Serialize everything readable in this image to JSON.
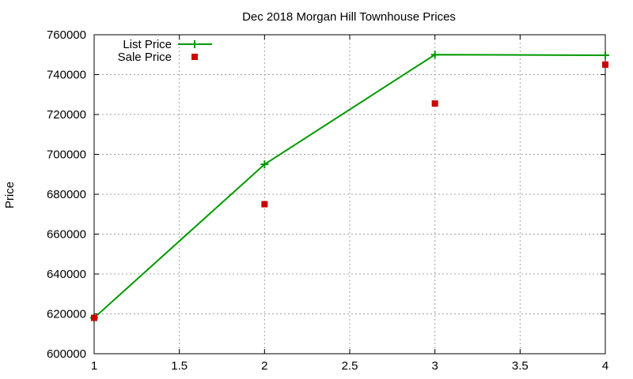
{
  "chart_data": {
    "type": "line",
    "title": "Dec 2018 Morgan Hill Townhouse Prices",
    "xlabel": "",
    "ylabel": "Price",
    "xlim": [
      1,
      4
    ],
    "ylim": [
      600000,
      760000
    ],
    "x_ticks": [
      "1",
      "1.5",
      "2",
      "2.5",
      "3",
      "3.5",
      "4"
    ],
    "y_ticks": [
      "600000",
      "620000",
      "640000",
      "660000",
      "680000",
      "700000",
      "720000",
      "740000",
      "760000"
    ],
    "grid": true,
    "legend_position": "top-left",
    "series": [
      {
        "name": "List Price",
        "style": "line+cross",
        "color": "#009900",
        "points": [
          {
            "x": 1,
            "y": 618000
          },
          {
            "x": 2,
            "y": 695000
          },
          {
            "x": 3,
            "y": 750000
          },
          {
            "x": 4,
            "y": 749700
          }
        ]
      },
      {
        "name": "Sale Price",
        "style": "square",
        "color": "#cc0000",
        "points": [
          {
            "x": 1,
            "y": 618000
          },
          {
            "x": 2,
            "y": 675000
          },
          {
            "x": 3,
            "y": 725500
          },
          {
            "x": 4,
            "y": 745000
          }
        ]
      }
    ]
  }
}
